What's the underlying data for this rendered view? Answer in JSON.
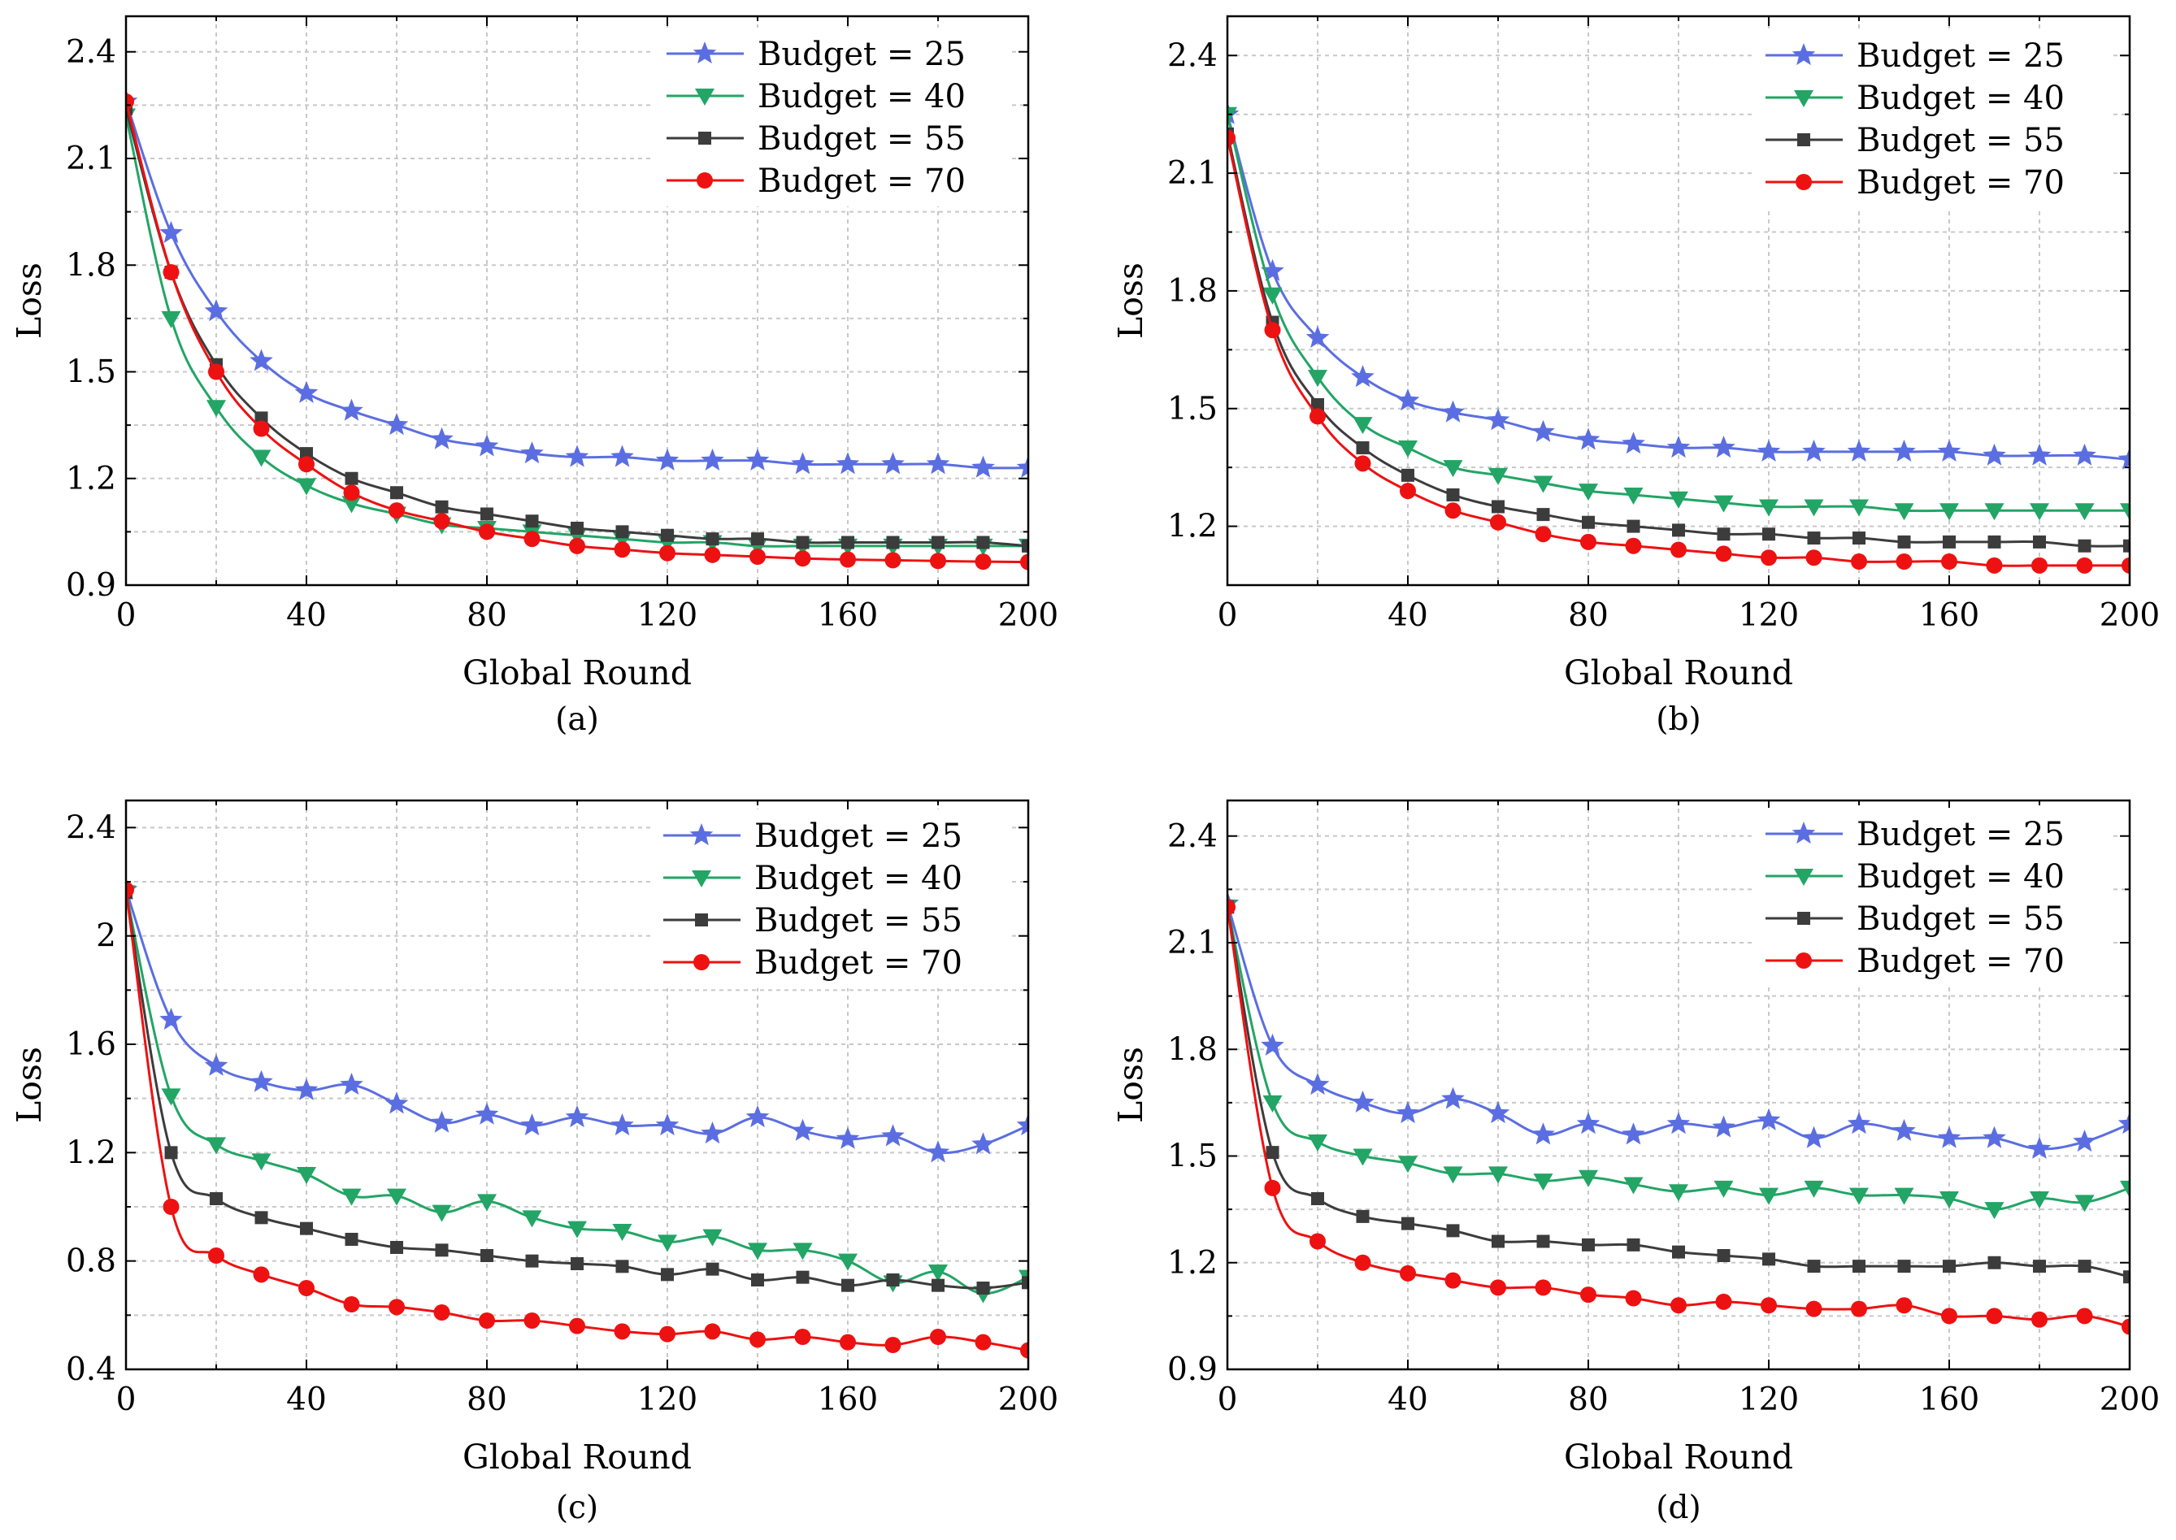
{
  "series_colors": [
    "#5b6ee1",
    "#22a565",
    "#3c3c3c",
    "#ee1111"
  ],
  "series_markers": [
    "star",
    "triangle-down",
    "square",
    "circle"
  ],
  "chart_data": [
    {
      "type": "line",
      "caption": "(a)",
      "xlabel": "Global Round",
      "ylabel": "Loss",
      "xlim": [
        0,
        200
      ],
      "ylim": [
        0.9,
        2.5
      ],
      "xticks": [
        0,
        40,
        80,
        120,
        160,
        200
      ],
      "yticks": [
        0.9,
        1.2,
        1.5,
        1.8,
        2.1,
        2.4
      ],
      "grid": true,
      "legend_position": "top-right",
      "x": [
        0,
        10,
        20,
        30,
        40,
        50,
        60,
        70,
        80,
        90,
        100,
        110,
        120,
        130,
        140,
        150,
        160,
        170,
        180,
        190,
        200
      ],
      "series": [
        {
          "name": "Budget = 25",
          "values": [
            2.26,
            1.89,
            1.67,
            1.53,
            1.44,
            1.39,
            1.35,
            1.31,
            1.29,
            1.27,
            1.26,
            1.26,
            1.25,
            1.25,
            1.25,
            1.24,
            1.24,
            1.24,
            1.24,
            1.23,
            1.23
          ]
        },
        {
          "name": "Budget = 40",
          "values": [
            2.22,
            1.65,
            1.4,
            1.26,
            1.18,
            1.13,
            1.1,
            1.07,
            1.06,
            1.05,
            1.04,
            1.03,
            1.02,
            1.02,
            1.01,
            1.01,
            1.01,
            1.01,
            1.01,
            1.01,
            1.01
          ]
        },
        {
          "name": "Budget = 55",
          "values": [
            2.24,
            1.78,
            1.52,
            1.37,
            1.27,
            1.2,
            1.16,
            1.12,
            1.1,
            1.08,
            1.06,
            1.05,
            1.04,
            1.03,
            1.03,
            1.02,
            1.02,
            1.02,
            1.02,
            1.02,
            1.01
          ]
        },
        {
          "name": "Budget = 70",
          "values": [
            2.26,
            1.78,
            1.5,
            1.34,
            1.24,
            1.16,
            1.11,
            1.08,
            1.05,
            1.03,
            1.01,
            1.0,
            0.99,
            0.985,
            0.98,
            0.975,
            0.972,
            0.97,
            0.968,
            0.966,
            0.965
          ]
        }
      ]
    },
    {
      "type": "line",
      "caption": "(b)",
      "xlabel": "Global Round",
      "ylabel": "Loss",
      "xlim": [
        0,
        200
      ],
      "ylim": [
        1.05,
        2.5
      ],
      "xticks": [
        0,
        40,
        80,
        120,
        160,
        200
      ],
      "yticks": [
        1.2,
        1.5,
        1.8,
        2.1,
        2.4
      ],
      "grid": true,
      "legend_position": "top-right",
      "x": [
        0,
        10,
        20,
        30,
        40,
        50,
        60,
        70,
        80,
        90,
        100,
        110,
        120,
        130,
        140,
        150,
        160,
        170,
        180,
        190,
        200
      ],
      "series": [
        {
          "name": "Budget = 25",
          "values": [
            2.25,
            1.85,
            1.68,
            1.58,
            1.52,
            1.49,
            1.47,
            1.44,
            1.42,
            1.41,
            1.4,
            1.4,
            1.39,
            1.39,
            1.39,
            1.39,
            1.39,
            1.38,
            1.38,
            1.38,
            1.37
          ]
        },
        {
          "name": "Budget = 40",
          "values": [
            2.25,
            1.79,
            1.58,
            1.46,
            1.4,
            1.35,
            1.33,
            1.31,
            1.29,
            1.28,
            1.27,
            1.26,
            1.25,
            1.25,
            1.25,
            1.24,
            1.24,
            1.24,
            1.24,
            1.24,
            1.24
          ]
        },
        {
          "name": "Budget = 55",
          "values": [
            2.2,
            1.72,
            1.51,
            1.4,
            1.33,
            1.28,
            1.25,
            1.23,
            1.21,
            1.2,
            1.19,
            1.18,
            1.18,
            1.17,
            1.17,
            1.16,
            1.16,
            1.16,
            1.16,
            1.15,
            1.15
          ]
        },
        {
          "name": "Budget = 70",
          "values": [
            2.19,
            1.7,
            1.48,
            1.36,
            1.29,
            1.24,
            1.21,
            1.18,
            1.16,
            1.15,
            1.14,
            1.13,
            1.12,
            1.12,
            1.11,
            1.11,
            1.11,
            1.1,
            1.1,
            1.1,
            1.1
          ]
        }
      ]
    },
    {
      "type": "line",
      "caption": "(c)",
      "xlabel": "Global Round",
      "ylabel": "Loss",
      "xlim": [
        0,
        200
      ],
      "ylim": [
        0.4,
        2.5
      ],
      "xticks": [
        0,
        40,
        80,
        120,
        160,
        200
      ],
      "yticks": [
        0.4,
        0.8,
        1.2,
        1.6,
        2.0,
        2.4
      ],
      "grid": true,
      "legend_position": "top-right",
      "x": [
        0,
        10,
        20,
        30,
        40,
        50,
        60,
        70,
        80,
        90,
        100,
        110,
        120,
        130,
        140,
        150,
        160,
        170,
        180,
        190,
        200
      ],
      "series": [
        {
          "name": "Budget = 25",
          "values": [
            2.17,
            1.69,
            1.52,
            1.46,
            1.43,
            1.45,
            1.38,
            1.31,
            1.34,
            1.3,
            1.33,
            1.3,
            1.3,
            1.27,
            1.33,
            1.28,
            1.25,
            1.26,
            1.2,
            1.23,
            1.3
          ]
        },
        {
          "name": "Budget = 40",
          "values": [
            2.16,
            1.41,
            1.23,
            1.17,
            1.12,
            1.04,
            1.04,
            0.98,
            1.02,
            0.96,
            0.92,
            0.91,
            0.87,
            0.89,
            0.84,
            0.84,
            0.8,
            0.72,
            0.76,
            0.68,
            0.74
          ]
        },
        {
          "name": "Budget = 55",
          "values": [
            2.16,
            1.2,
            1.03,
            0.96,
            0.92,
            0.88,
            0.85,
            0.84,
            0.82,
            0.8,
            0.79,
            0.78,
            0.75,
            0.77,
            0.73,
            0.74,
            0.71,
            0.73,
            0.71,
            0.7,
            0.72
          ]
        },
        {
          "name": "Budget = 70",
          "values": [
            2.17,
            1.0,
            0.82,
            0.75,
            0.7,
            0.64,
            0.63,
            0.61,
            0.58,
            0.58,
            0.56,
            0.54,
            0.53,
            0.54,
            0.51,
            0.52,
            0.5,
            0.49,
            0.52,
            0.5,
            0.47
          ]
        }
      ]
    },
    {
      "type": "line",
      "caption": "(d)",
      "xlabel": "Global Round",
      "ylabel": "Loss",
      "xlim": [
        0,
        200
      ],
      "ylim": [
        0.9,
        2.5
      ],
      "xticks": [
        0,
        40,
        80,
        120,
        160,
        200
      ],
      "yticks": [
        0.9,
        1.2,
        1.5,
        1.8,
        2.1,
        2.4
      ],
      "grid": true,
      "legend_position": "top-right",
      "x": [
        0,
        10,
        20,
        30,
        40,
        50,
        60,
        70,
        80,
        90,
        100,
        110,
        120,
        130,
        140,
        150,
        160,
        170,
        180,
        190,
        200
      ],
      "series": [
        {
          "name": "Budget = 25",
          "values": [
            2.21,
            1.81,
            1.7,
            1.65,
            1.62,
            1.66,
            1.62,
            1.56,
            1.59,
            1.56,
            1.59,
            1.58,
            1.6,
            1.55,
            1.59,
            1.57,
            1.55,
            1.55,
            1.52,
            1.54,
            1.59
          ]
        },
        {
          "name": "Budget = 40",
          "values": [
            2.2,
            1.65,
            1.54,
            1.5,
            1.48,
            1.45,
            1.45,
            1.43,
            1.44,
            1.42,
            1.4,
            1.41,
            1.39,
            1.41,
            1.39,
            1.39,
            1.38,
            1.35,
            1.38,
            1.37,
            1.41
          ]
        },
        {
          "name": "Budget = 55",
          "values": [
            2.2,
            1.51,
            1.38,
            1.33,
            1.31,
            1.29,
            1.26,
            1.26,
            1.25,
            1.25,
            1.23,
            1.22,
            1.21,
            1.19,
            1.19,
            1.19,
            1.19,
            1.2,
            1.19,
            1.19,
            1.16
          ]
        },
        {
          "name": "Budget = 70",
          "values": [
            2.2,
            1.41,
            1.26,
            1.2,
            1.17,
            1.15,
            1.13,
            1.13,
            1.11,
            1.1,
            1.08,
            1.09,
            1.08,
            1.07,
            1.07,
            1.08,
            1.05,
            1.05,
            1.04,
            1.05,
            1.02
          ]
        }
      ]
    }
  ]
}
